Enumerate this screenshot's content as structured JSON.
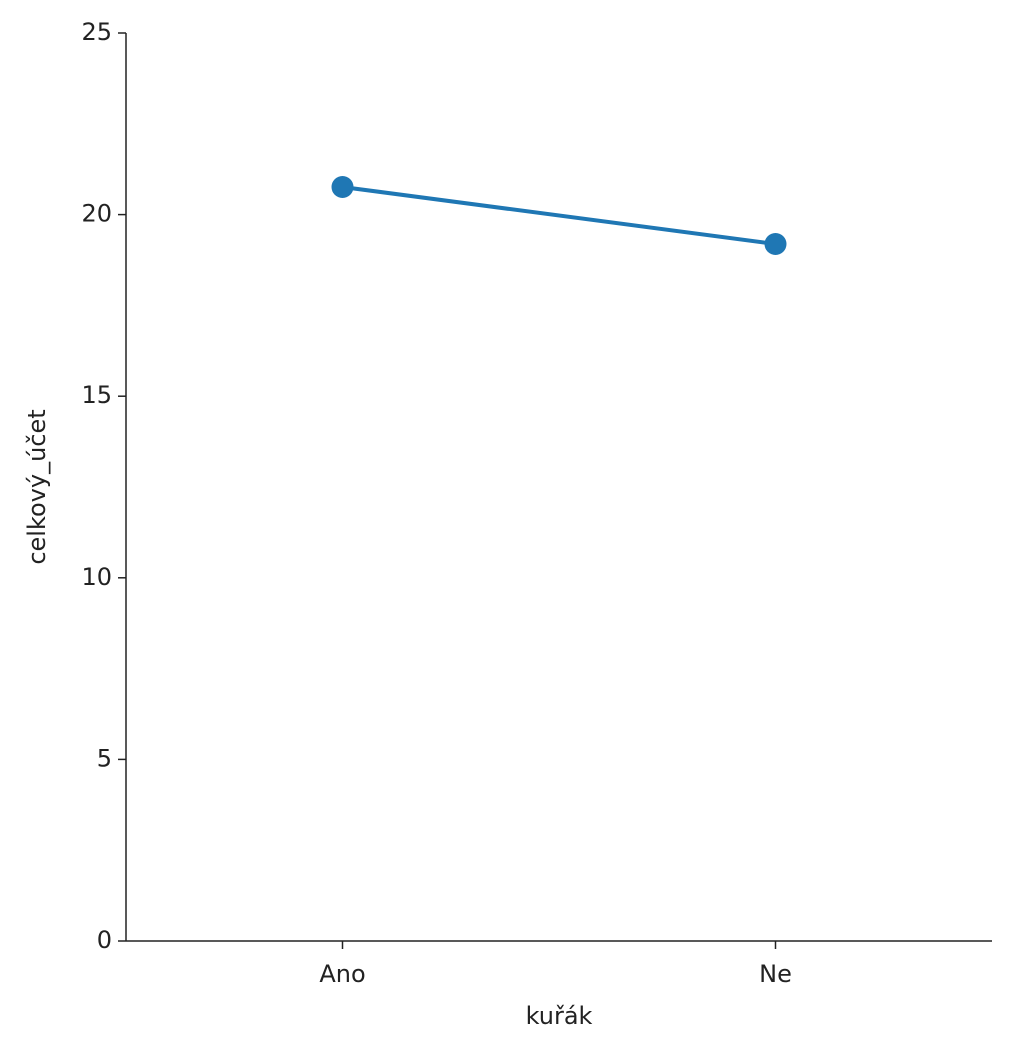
{
  "chart_data": {
    "type": "line",
    "x_label": "kuřák",
    "y_label": "celkový_účet",
    "categories": [
      "Ano",
      "Ne"
    ],
    "series": [
      {
        "name": null,
        "color": "#1f77b4",
        "values": [
          20.76,
          19.19
        ]
      }
    ],
    "ylim": [
      0,
      25
    ],
    "yticks": [
      0,
      5,
      10,
      15,
      20,
      25
    ],
    "grid": false
  }
}
